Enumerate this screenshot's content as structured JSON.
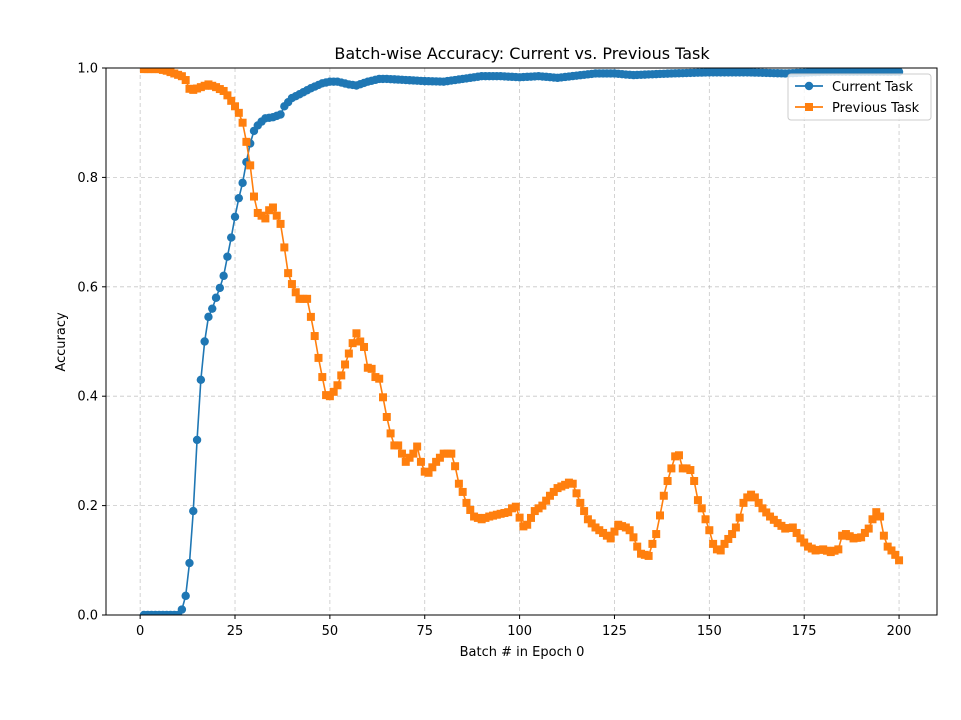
{
  "chart_data": {
    "type": "line",
    "title": "Batch-wise Accuracy: Current vs. Previous Task",
    "xlabel": "Batch # in Epoch 0",
    "ylabel": "Accuracy",
    "xlim": [
      -9,
      210
    ],
    "ylim": [
      0.0,
      1.0
    ],
    "xticks": [
      0,
      25,
      50,
      75,
      100,
      125,
      150,
      175,
      200
    ],
    "yticks": [
      0.0,
      0.2,
      0.4,
      0.6,
      0.8,
      1.0
    ],
    "xtick_labels": [
      "0",
      "25",
      "50",
      "75",
      "100",
      "125",
      "150",
      "175",
      "200"
    ],
    "ytick_labels": [
      "0.0",
      "0.2",
      "0.4",
      "0.6",
      "0.8",
      "1.0"
    ],
    "grid": true,
    "legend_position": "top-right",
    "series": [
      {
        "name": "Current Task",
        "color": "#1f77b4",
        "marker": "circle",
        "anchors_x": [
          1,
          10,
          11,
          12,
          13,
          14,
          15,
          16,
          17,
          18,
          19,
          20,
          21,
          22,
          23,
          24,
          25,
          26,
          27,
          28,
          29,
          30,
          31,
          32,
          33,
          35,
          37,
          38,
          40,
          42,
          45,
          48,
          50,
          52,
          55,
          57,
          60,
          63,
          65,
          70,
          75,
          80,
          85,
          90,
          95,
          100,
          105,
          110,
          115,
          120,
          125,
          128,
          130,
          140,
          150,
          160,
          170,
          180,
          190,
          200
        ],
        "anchors_y": [
          0.0,
          0.0,
          0.01,
          0.035,
          0.095,
          0.19,
          0.32,
          0.43,
          0.5,
          0.545,
          0.56,
          0.58,
          0.598,
          0.62,
          0.655,
          0.69,
          0.728,
          0.762,
          0.79,
          0.828,
          0.862,
          0.885,
          0.895,
          0.902,
          0.908,
          0.91,
          0.915,
          0.93,
          0.945,
          0.952,
          0.963,
          0.972,
          0.975,
          0.975,
          0.97,
          0.968,
          0.975,
          0.98,
          0.98,
          0.978,
          0.976,
          0.975,
          0.98,
          0.985,
          0.985,
          0.983,
          0.985,
          0.982,
          0.986,
          0.99,
          0.99,
          0.988,
          0.987,
          0.99,
          0.992,
          0.992,
          0.99,
          0.993,
          0.993,
          0.993
        ]
      },
      {
        "name": "Previous Task",
        "color": "#ff7f0e",
        "marker": "square",
        "anchors_x": [
          1,
          5,
          7,
          9,
          11,
          12,
          13,
          14,
          16,
          18,
          20,
          22,
          23,
          24,
          25,
          26,
          27,
          28,
          29,
          30,
          31,
          32,
          33,
          34,
          35,
          36,
          37,
          38,
          39,
          40,
          41,
          42,
          44,
          45,
          46,
          47,
          48,
          49,
          50,
          51,
          52,
          53,
          54,
          55,
          56,
          57,
          58,
          59,
          60,
          61,
          62,
          63,
          64,
          65,
          66,
          67,
          68,
          70,
          72,
          73,
          74,
          75,
          76,
          77,
          78,
          80,
          82,
          83,
          84,
          85,
          86,
          87,
          88,
          90,
          92,
          95,
          97,
          98,
          99,
          100,
          101,
          102,
          104,
          106,
          108,
          110,
          112,
          113,
          114,
          116,
          118,
          120,
          122,
          124,
          126,
          128,
          129,
          130,
          131,
          132,
          134,
          135,
          136,
          137,
          138,
          139,
          140,
          141,
          142,
          143,
          144,
          145,
          146,
          147,
          148,
          149,
          150,
          151,
          152,
          153,
          154,
          156,
          157,
          158,
          159,
          160,
          161,
          162,
          164,
          166,
          168,
          170,
          172,
          174,
          176,
          178,
          180,
          182,
          184,
          185,
          186,
          188,
          190,
          192,
          193,
          194,
          195,
          196,
          197,
          198,
          199,
          200
        ],
        "anchors_y": [
          0.998,
          0.998,
          0.995,
          0.99,
          0.985,
          0.978,
          0.962,
          0.96,
          0.965,
          0.97,
          0.965,
          0.958,
          0.95,
          0.94,
          0.93,
          0.918,
          0.9,
          0.865,
          0.822,
          0.765,
          0.735,
          0.73,
          0.725,
          0.74,
          0.745,
          0.73,
          0.715,
          0.672,
          0.625,
          0.605,
          0.59,
          0.578,
          0.578,
          0.545,
          0.51,
          0.47,
          0.435,
          0.402,
          0.4,
          0.408,
          0.42,
          0.438,
          0.458,
          0.478,
          0.497,
          0.515,
          0.5,
          0.49,
          0.452,
          0.45,
          0.435,
          0.432,
          0.398,
          0.362,
          0.332,
          0.31,
          0.31,
          0.28,
          0.295,
          0.308,
          0.28,
          0.262,
          0.26,
          0.27,
          0.28,
          0.295,
          0.295,
          0.272,
          0.24,
          0.225,
          0.205,
          0.192,
          0.18,
          0.175,
          0.18,
          0.185,
          0.188,
          0.195,
          0.198,
          0.178,
          0.162,
          0.165,
          0.19,
          0.2,
          0.218,
          0.232,
          0.238,
          0.242,
          0.24,
          0.205,
          0.175,
          0.16,
          0.15,
          0.14,
          0.165,
          0.16,
          0.155,
          0.142,
          0.125,
          0.112,
          0.108,
          0.13,
          0.148,
          0.182,
          0.218,
          0.245,
          0.268,
          0.29,
          0.292,
          0.268,
          0.268,
          0.265,
          0.245,
          0.21,
          0.195,
          0.175,
          0.155,
          0.13,
          0.12,
          0.118,
          0.13,
          0.148,
          0.16,
          0.178,
          0.205,
          0.215,
          0.22,
          0.215,
          0.195,
          0.18,
          0.168,
          0.158,
          0.16,
          0.14,
          0.125,
          0.118,
          0.12,
          0.115,
          0.12,
          0.145,
          0.148,
          0.14,
          0.142,
          0.158,
          0.175,
          0.188,
          0.18,
          0.145,
          0.125,
          0.118,
          0.11,
          0.1
        ]
      }
    ]
  }
}
